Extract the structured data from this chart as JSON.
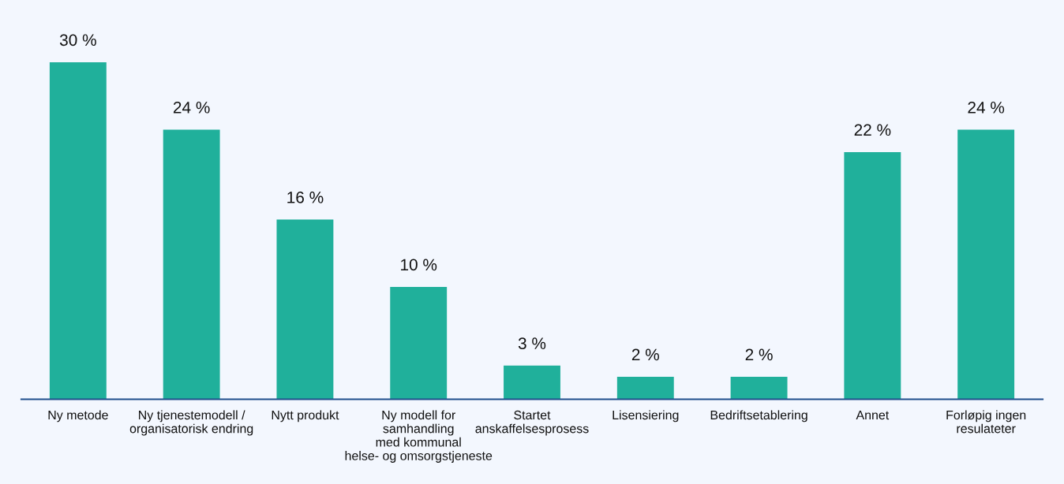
{
  "chart_data": {
    "type": "bar",
    "categories": [
      "Ny metode",
      "Ny tjenestemodell /\norganisatorisk endring",
      "Nytt produkt",
      "Ny modell for\nsamhandling\nmed kommunal\nhelse- og omsorgstjeneste",
      "Startet\nanskaffelsesprosess",
      "Lisensiering",
      "Bedriftsetablering",
      "Annet",
      "Forløpig ingen\nresulateter"
    ],
    "values": [
      30,
      24,
      16,
      10,
      3,
      2,
      2,
      22,
      24
    ],
    "value_labels": [
      "30 %",
      "24 %",
      "16 %",
      "10 %",
      "3 %",
      "2 %",
      "2 %",
      "22 %",
      "24 %"
    ],
    "color": "#20b09b",
    "grid": false,
    "tick_labels": "x"
  }
}
